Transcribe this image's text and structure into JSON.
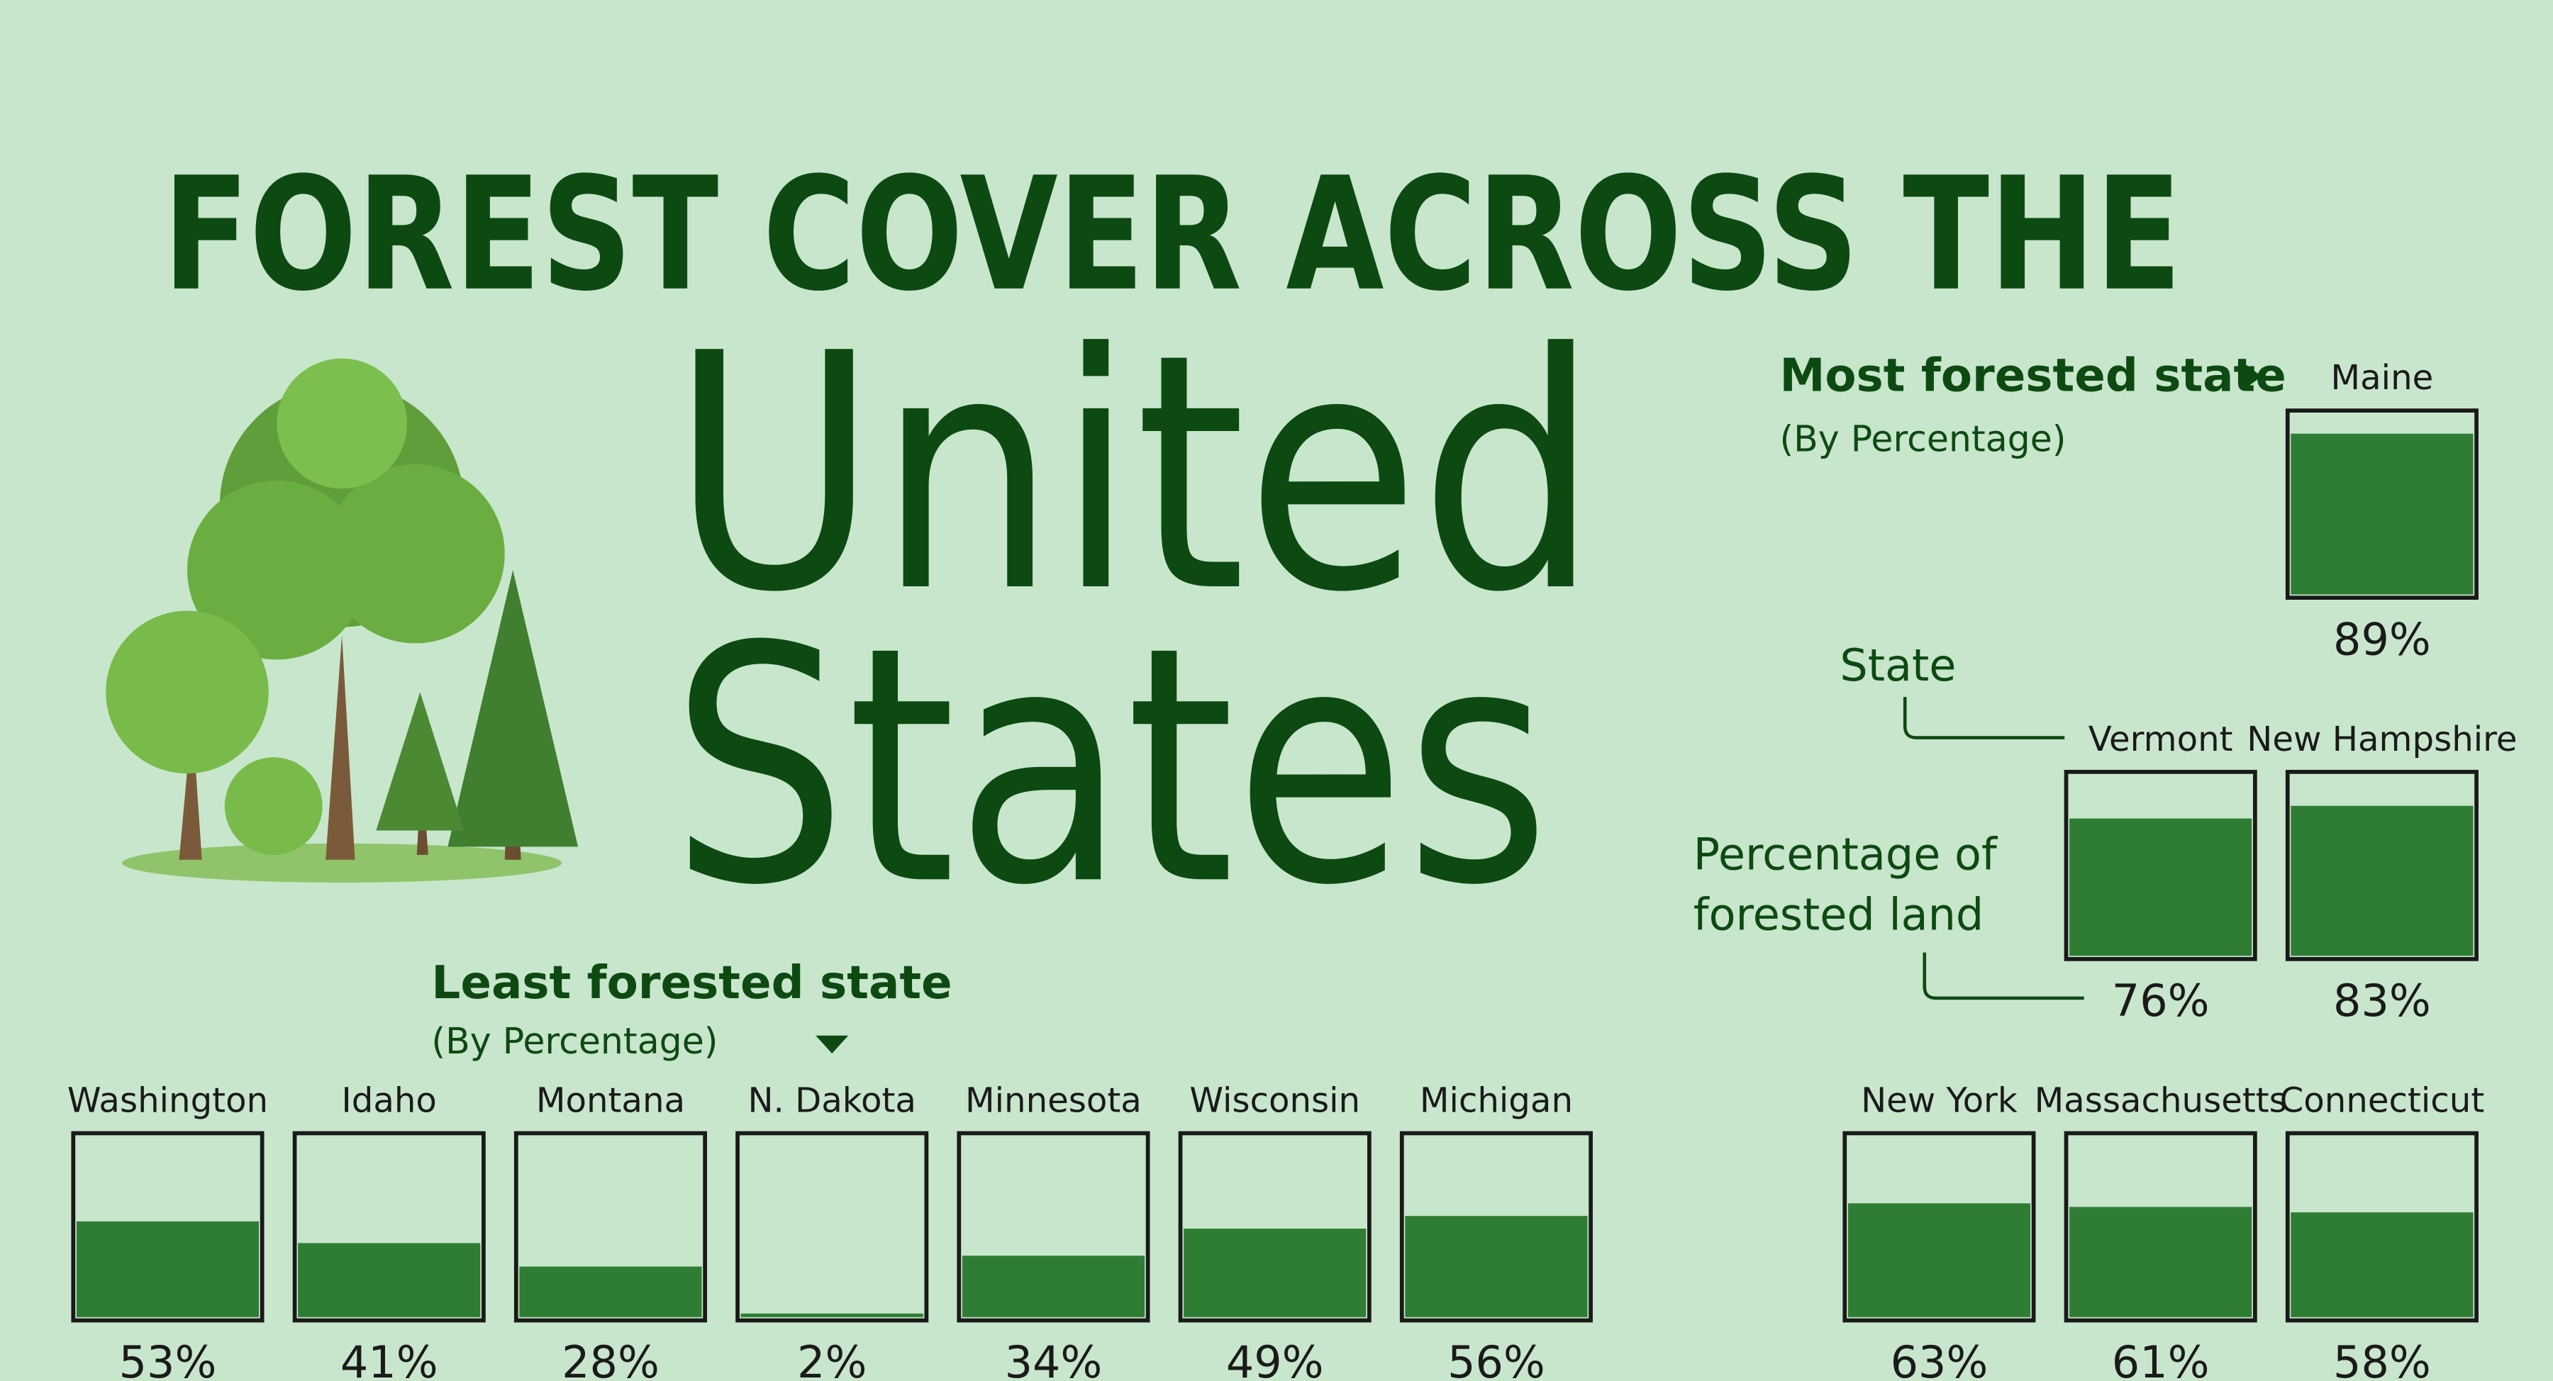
{
  "chart_data": {
    "type": "fill-box",
    "title_line1": "FOREST COVER ACROSS THE",
    "title_line2": "United",
    "title_line3": "States",
    "most_label": "Most forested state",
    "most_sub": "(By Percentage)",
    "least_label": "Least forested state",
    "least_sub": "(By Percentage)",
    "legend_state": "State",
    "legend_percentage_line1": "Percentage of",
    "legend_percentage_line2": "forested land",
    "categories": [
      "Maine",
      "Vermont",
      "New Hampshire",
      "Washington",
      "Idaho",
      "Montana",
      "N. Dakota",
      "Minnesota",
      "Wisconsin",
      "Michigan",
      "New York",
      "Massachusetts",
      "Connecticut"
    ],
    "values": [
      89,
      76,
      83,
      53,
      41,
      28,
      2,
      34,
      49,
      56,
      63,
      61,
      58
    ],
    "value_labels": [
      "89%",
      "76%",
      "83%",
      "53%",
      "41%",
      "28%",
      "2%",
      "34%",
      "49%",
      "56%",
      "63%",
      "61%",
      "58%"
    ],
    "ylim": [
      0,
      100
    ],
    "fill_color": "#2f7d35"
  }
}
